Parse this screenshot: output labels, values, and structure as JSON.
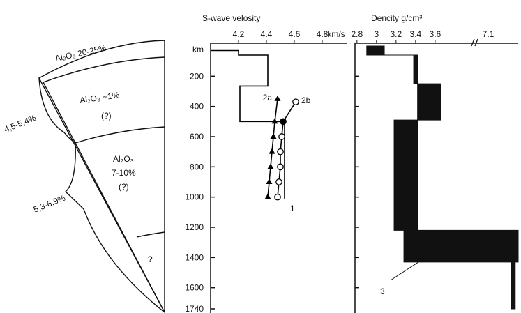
{
  "diagram": {
    "top": "Al₂O₃ 20-25%",
    "upper": [
      "Al₂O₃ ~1%",
      "(?)"
    ],
    "middle": [
      "Al₂O₃",
      "7-10%",
      "(?)"
    ],
    "bottom": "?",
    "bracket_upper": "4,5-5,4%",
    "bracket_lower": "5,3-6,9%"
  },
  "chart_data": [
    {
      "type": "profile",
      "title": "S-wave velosity",
      "x_unit": "km/s",
      "y_unit": "km",
      "xlim": [
        4.0,
        4.98
      ],
      "xticks": [
        4.2,
        4.4,
        4.6,
        4.8
      ],
      "ylim": [
        0,
        1740
      ],
      "yticks": [
        200,
        400,
        600,
        800,
        1000,
        1200,
        1400,
        1600,
        1740
      ],
      "series": [
        {
          "name": "1",
          "color": "#000000",
          "marker": "none",
          "depth": [
            30,
            30,
            60,
            60,
            265,
            265,
            500,
            500,
            1010
          ],
          "values": [
            4.0,
            4.2,
            4.2,
            4.41,
            4.41,
            4.21,
            4.21,
            4.53,
            4.53
          ]
        },
        {
          "name": "2a",
          "color": "#000000",
          "marker": "triangle",
          "depth": [
            1000,
            900,
            800,
            700,
            600,
            500,
            350
          ],
          "values": [
            4.41,
            4.42,
            4.43,
            4.44,
            4.45,
            4.46,
            4.48
          ]
        },
        {
          "name": "2b",
          "color": "#000000",
          "marker": "circle",
          "depth": [
            1000,
            900,
            800,
            700,
            600,
            500,
            370
          ],
          "values": [
            4.48,
            4.49,
            4.5,
            4.5,
            4.51,
            4.52,
            4.61
          ]
        }
      ]
    },
    {
      "type": "band",
      "title": "Dencity g/cm³",
      "xlim": [
        2.78,
        4.45
      ],
      "xticks": [
        2.8,
        3.0,
        3.2,
        3.4,
        3.6
      ],
      "broken_axis_tick": "7.1",
      "ylim": [
        0,
        1740
      ],
      "yticks": [
        200,
        400,
        600,
        800,
        1000,
        1200,
        1400,
        1600
      ],
      "annotation": "3",
      "color": "#111111",
      "depth": [
        0,
        60,
        60,
        250,
        250,
        490,
        490,
        1220,
        1220,
        1430,
        1430,
        1740
      ],
      "min": [
        2.9,
        2.9,
        3.38,
        3.38,
        3.42,
        3.42,
        3.18,
        3.18,
        3.28,
        3.28,
        4.38,
        4.38
      ],
      "max": [
        3.08,
        3.08,
        3.42,
        3.42,
        3.66,
        3.66,
        3.42,
        3.42,
        4.45,
        4.45,
        4.42,
        4.42
      ]
    }
  ]
}
